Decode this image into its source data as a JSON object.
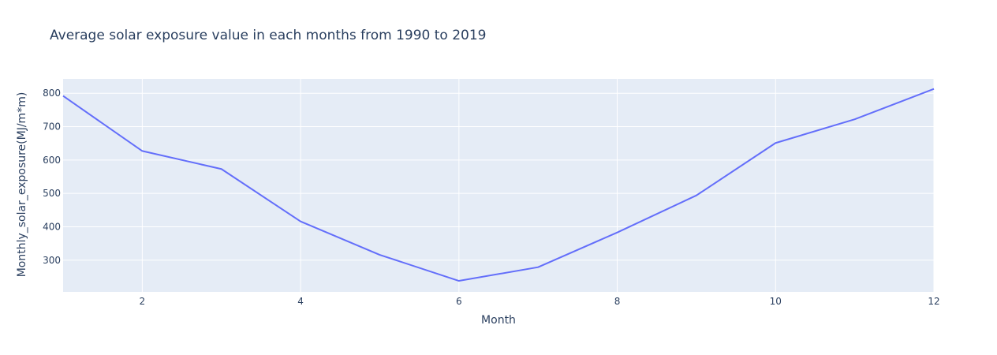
{
  "chart_data": {
    "type": "line",
    "title": "Average solar exposure value in each months from 1990 to 2019",
    "xlabel": "Month",
    "ylabel": "Monthly_solar_exposure(MJ/m*m)",
    "xlim": [
      1,
      12
    ],
    "ylim": [
      205,
      843
    ],
    "xticks": [
      2,
      4,
      6,
      8,
      10,
      12
    ],
    "yticks": [
      300,
      400,
      500,
      600,
      700,
      800
    ],
    "grid": true,
    "series": [
      {
        "x": [
          1,
          2,
          3,
          4,
          5,
          6,
          7,
          8,
          9,
          10,
          11,
          12
        ],
        "y": [
          792,
          627,
          573,
          416,
          316,
          238,
          279,
          383,
          494,
          651,
          722,
          813
        ],
        "color": "#636efa"
      }
    ]
  },
  "colors": {
    "plot_background": "#e5ecf6",
    "grid": "#ffffff",
    "text": "#2a3f5f",
    "line": "#636efa"
  }
}
